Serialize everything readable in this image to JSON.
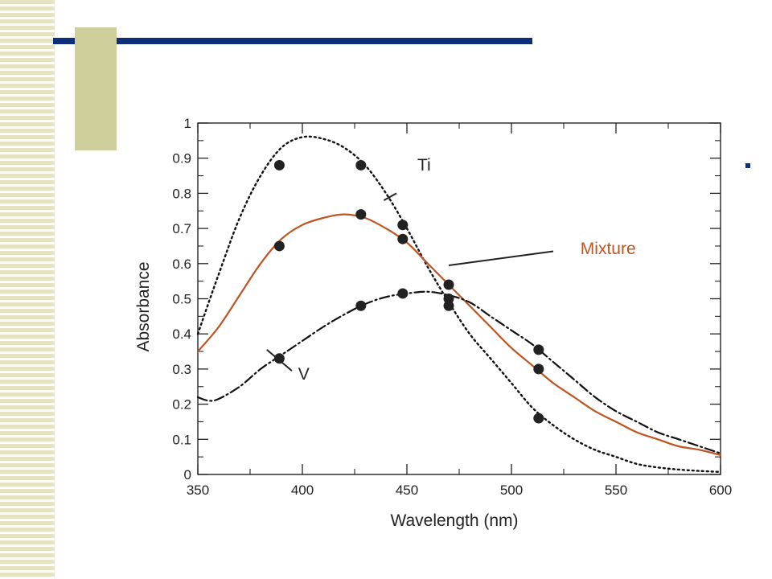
{
  "slide": {
    "colors": {
      "strip": "#e4e4c3",
      "header_bar": "#0f2f7a",
      "tan_box": "#cfcf9b",
      "bullet": "#0f2f7a"
    }
  },
  "chart_data": {
    "type": "line",
    "title": "",
    "xlabel": "Wavelength (nm)",
    "ylabel": "Absorbance",
    "xlim": [
      350,
      600
    ],
    "ylim": [
      0,
      1
    ],
    "x_ticks": [
      "350",
      "400",
      "450",
      "500",
      "550",
      "600"
    ],
    "y_ticks": [
      "0",
      "0.1",
      "0.2",
      "0.3",
      "0.4",
      "0.5",
      "0.6",
      "0.7",
      "0.8",
      "0.9",
      "1"
    ],
    "grid": false,
    "series": [
      {
        "name": "Ti",
        "color": "#111111",
        "line_style": "dotted",
        "curve": [
          [
            350,
            0.4
          ],
          [
            360,
            0.57
          ],
          [
            370,
            0.73
          ],
          [
            380,
            0.85
          ],
          [
            390,
            0.93
          ],
          [
            400,
            0.96
          ],
          [
            410,
            0.955
          ],
          [
            420,
            0.93
          ],
          [
            430,
            0.88
          ],
          [
            440,
            0.8
          ],
          [
            450,
            0.7
          ],
          [
            460,
            0.59
          ],
          [
            470,
            0.49
          ],
          [
            480,
            0.4
          ],
          [
            490,
            0.33
          ],
          [
            500,
            0.26
          ],
          [
            510,
            0.19
          ],
          [
            520,
            0.14
          ],
          [
            530,
            0.1
          ],
          [
            540,
            0.07
          ],
          [
            550,
            0.05
          ],
          [
            560,
            0.03
          ],
          [
            570,
            0.02
          ],
          [
            580,
            0.014
          ],
          [
            590,
            0.01
          ],
          [
            600,
            0.007
          ]
        ],
        "points": [
          [
            389,
            0.88
          ],
          [
            428,
            0.88
          ],
          [
            448,
            0.71
          ],
          [
            470,
            0.5
          ],
          [
            513,
            0.16
          ]
        ]
      },
      {
        "name": "Mixture",
        "color": "#c0531f",
        "line_style": "solid",
        "curve": [
          [
            350,
            0.35
          ],
          [
            360,
            0.42
          ],
          [
            370,
            0.51
          ],
          [
            380,
            0.6
          ],
          [
            390,
            0.67
          ],
          [
            400,
            0.71
          ],
          [
            410,
            0.73
          ],
          [
            420,
            0.74
          ],
          [
            430,
            0.73
          ],
          [
            440,
            0.7
          ],
          [
            450,
            0.66
          ],
          [
            460,
            0.6
          ],
          [
            470,
            0.54
          ],
          [
            480,
            0.48
          ],
          [
            490,
            0.42
          ],
          [
            500,
            0.36
          ],
          [
            510,
            0.31
          ],
          [
            520,
            0.26
          ],
          [
            530,
            0.22
          ],
          [
            540,
            0.18
          ],
          [
            550,
            0.15
          ],
          [
            560,
            0.12
          ],
          [
            570,
            0.1
          ],
          [
            580,
            0.08
          ],
          [
            590,
            0.07
          ],
          [
            600,
            0.055
          ]
        ],
        "points": [
          [
            389,
            0.65
          ],
          [
            428,
            0.74
          ],
          [
            448,
            0.67
          ],
          [
            470,
            0.54
          ],
          [
            513,
            0.3
          ]
        ]
      },
      {
        "name": "V",
        "color": "#111111",
        "line_style": "dash-dot",
        "curve": [
          [
            350,
            0.22
          ],
          [
            355,
            0.21
          ],
          [
            360,
            0.215
          ],
          [
            370,
            0.25
          ],
          [
            380,
            0.3
          ],
          [
            390,
            0.34
          ],
          [
            400,
            0.38
          ],
          [
            410,
            0.42
          ],
          [
            420,
            0.455
          ],
          [
            430,
            0.485
          ],
          [
            440,
            0.505
          ],
          [
            450,
            0.515
          ],
          [
            460,
            0.52
          ],
          [
            470,
            0.51
          ],
          [
            480,
            0.49
          ],
          [
            490,
            0.45
          ],
          [
            500,
            0.41
          ],
          [
            510,
            0.37
          ],
          [
            520,
            0.32
          ],
          [
            530,
            0.27
          ],
          [
            540,
            0.22
          ],
          [
            550,
            0.18
          ],
          [
            560,
            0.15
          ],
          [
            570,
            0.12
          ],
          [
            580,
            0.1
          ],
          [
            590,
            0.08
          ],
          [
            600,
            0.06
          ]
        ],
        "points": [
          [
            389,
            0.33
          ],
          [
            428,
            0.48
          ],
          [
            448,
            0.515
          ],
          [
            470,
            0.48
          ],
          [
            513,
            0.355
          ]
        ]
      }
    ],
    "annotations": [
      {
        "text": "Ti",
        "label_at": [
          455,
          0.865
        ],
        "pointer_from": [
          445,
          0.8
        ],
        "pointer_to": [
          439,
          0.78
        ]
      },
      {
        "text": "Mixture",
        "label_at": [
          533,
          0.627
        ],
        "pointer_from": [
          520,
          0.635
        ],
        "pointer_to": [
          470,
          0.595
        ]
      },
      {
        "text": "V",
        "label_at": [
          398,
          0.27
        ],
        "pointer_from": [
          395,
          0.295
        ],
        "pointer_to": [
          383,
          0.355
        ]
      }
    ]
  }
}
